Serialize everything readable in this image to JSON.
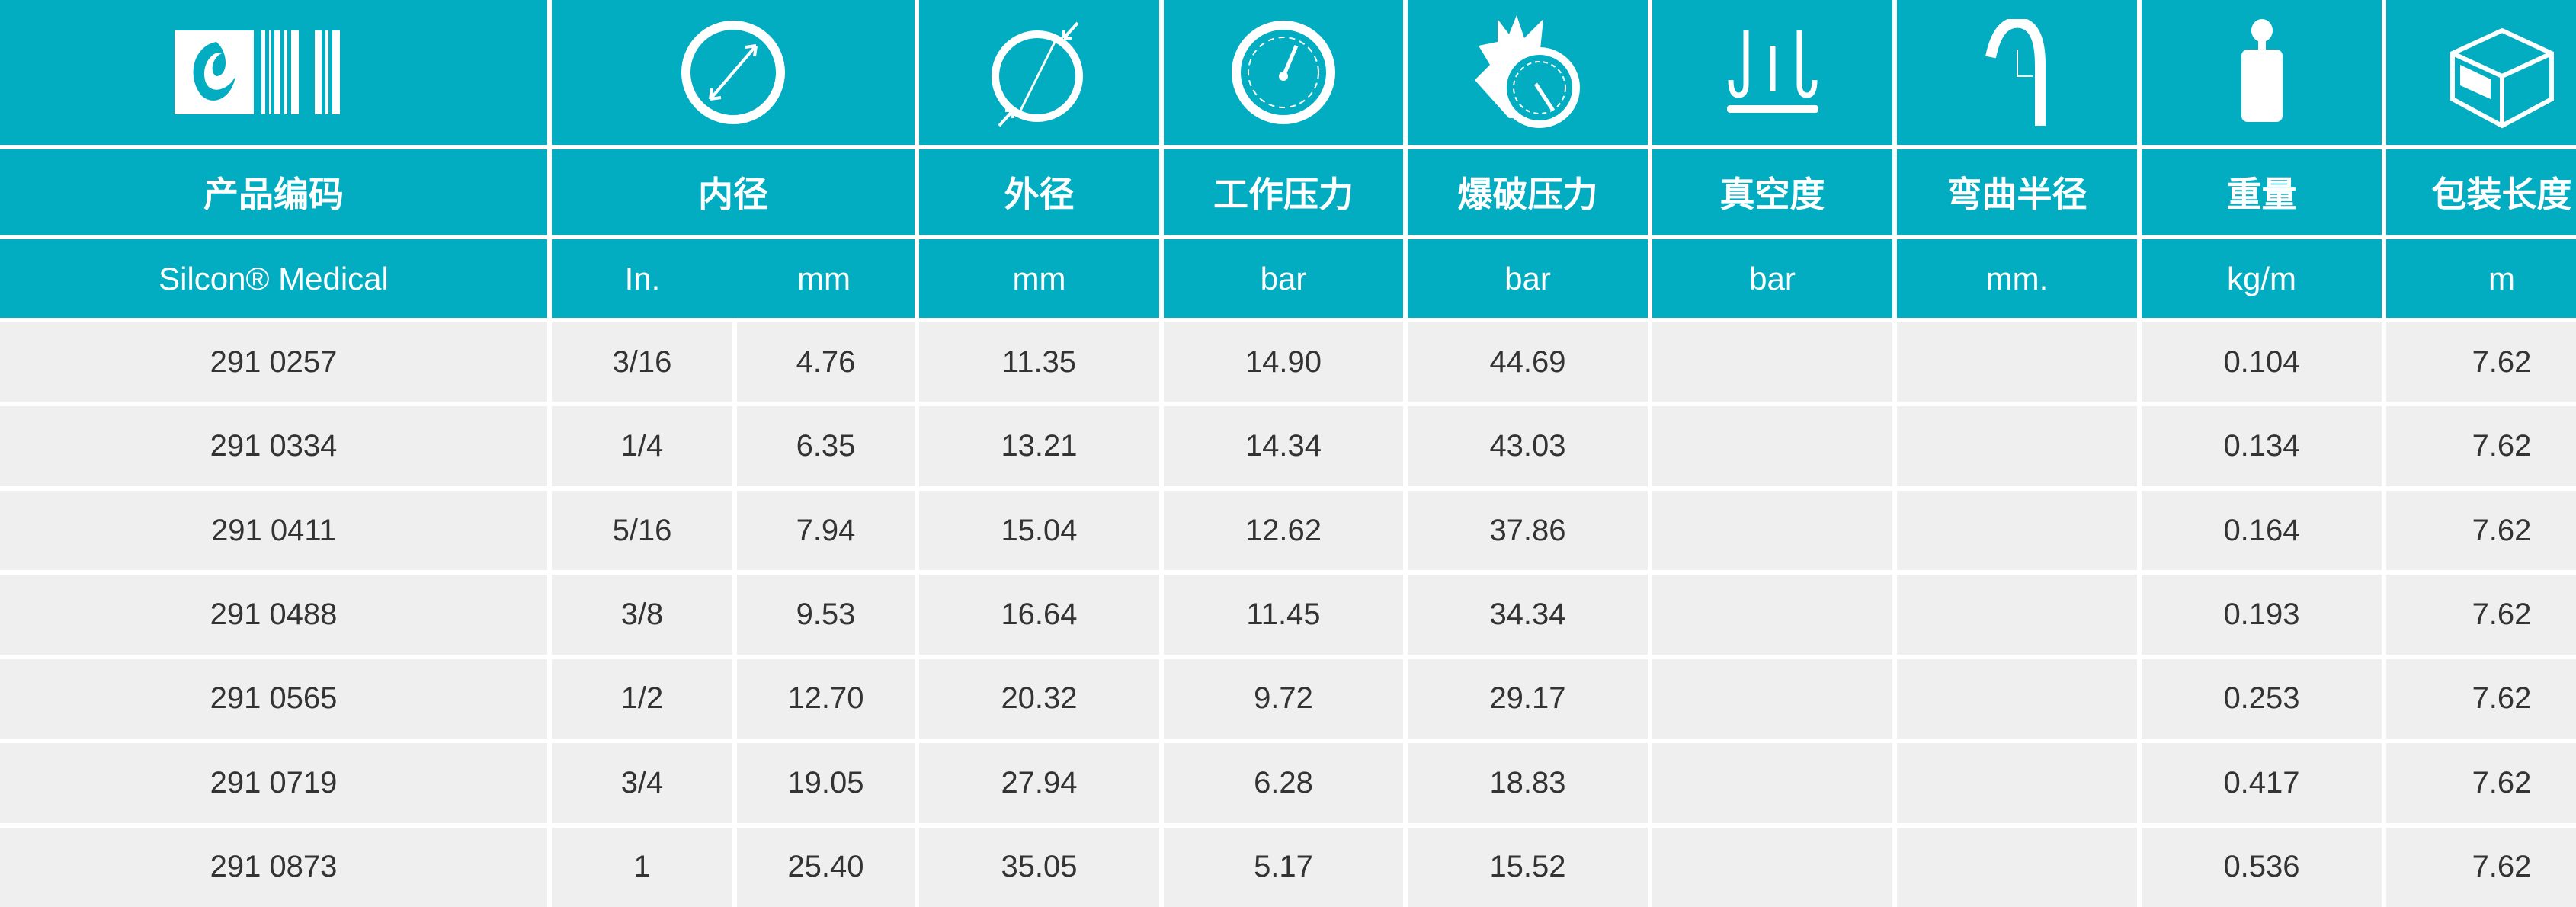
{
  "colors": {
    "header_bg": "#02adc2",
    "row_bg": "#efefef",
    "text": "#333333"
  },
  "icons": [
    "logo-barcode",
    "inner-diameter-icon",
    "outer-diameter-icon",
    "working-pressure-gauge-icon",
    "burst-pressure-gauge-icon",
    "vacuum-icon",
    "bend-radius-icon",
    "weight-icon",
    "package-box-icon"
  ],
  "headers": [
    "产品编码",
    "内径",
    "外径",
    "工作压力",
    "爆破压力",
    "真空度",
    "弯曲半径",
    "重量",
    "包装长度"
  ],
  "units": [
    "Silcon® Medical",
    "In.",
    "mm",
    "mm",
    "bar",
    "bar",
    "bar",
    "mm.",
    "kg/m",
    "m"
  ],
  "rows": [
    [
      "291 0257",
      "3/16",
      "4.76",
      "11.35",
      "14.90",
      "44.69",
      "",
      "",
      "0.104",
      "7.62"
    ],
    [
      "291 0334",
      "1/4",
      "6.35",
      "13.21",
      "14.34",
      "43.03",
      "",
      "",
      "0.134",
      "7.62"
    ],
    [
      "291 0411",
      "5/16",
      "7.94",
      "15.04",
      "12.62",
      "37.86",
      "",
      "",
      "0.164",
      "7.62"
    ],
    [
      "291 0488",
      "3/8",
      "9.53",
      "16.64",
      "11.45",
      "34.34",
      "",
      "",
      "0.193",
      "7.62"
    ],
    [
      "291 0565",
      "1/2",
      "12.70",
      "20.32",
      "9.72",
      "29.17",
      "",
      "",
      "0.253",
      "7.62"
    ],
    [
      "291 0719",
      "3/4",
      "19.05",
      "27.94",
      "6.28",
      "18.83",
      "",
      "",
      "0.417",
      "7.62"
    ],
    [
      "291 0873",
      "1",
      "25.40",
      "35.05",
      "5.17",
      "15.52",
      "",
      "",
      "0.536",
      "7.62"
    ]
  ]
}
